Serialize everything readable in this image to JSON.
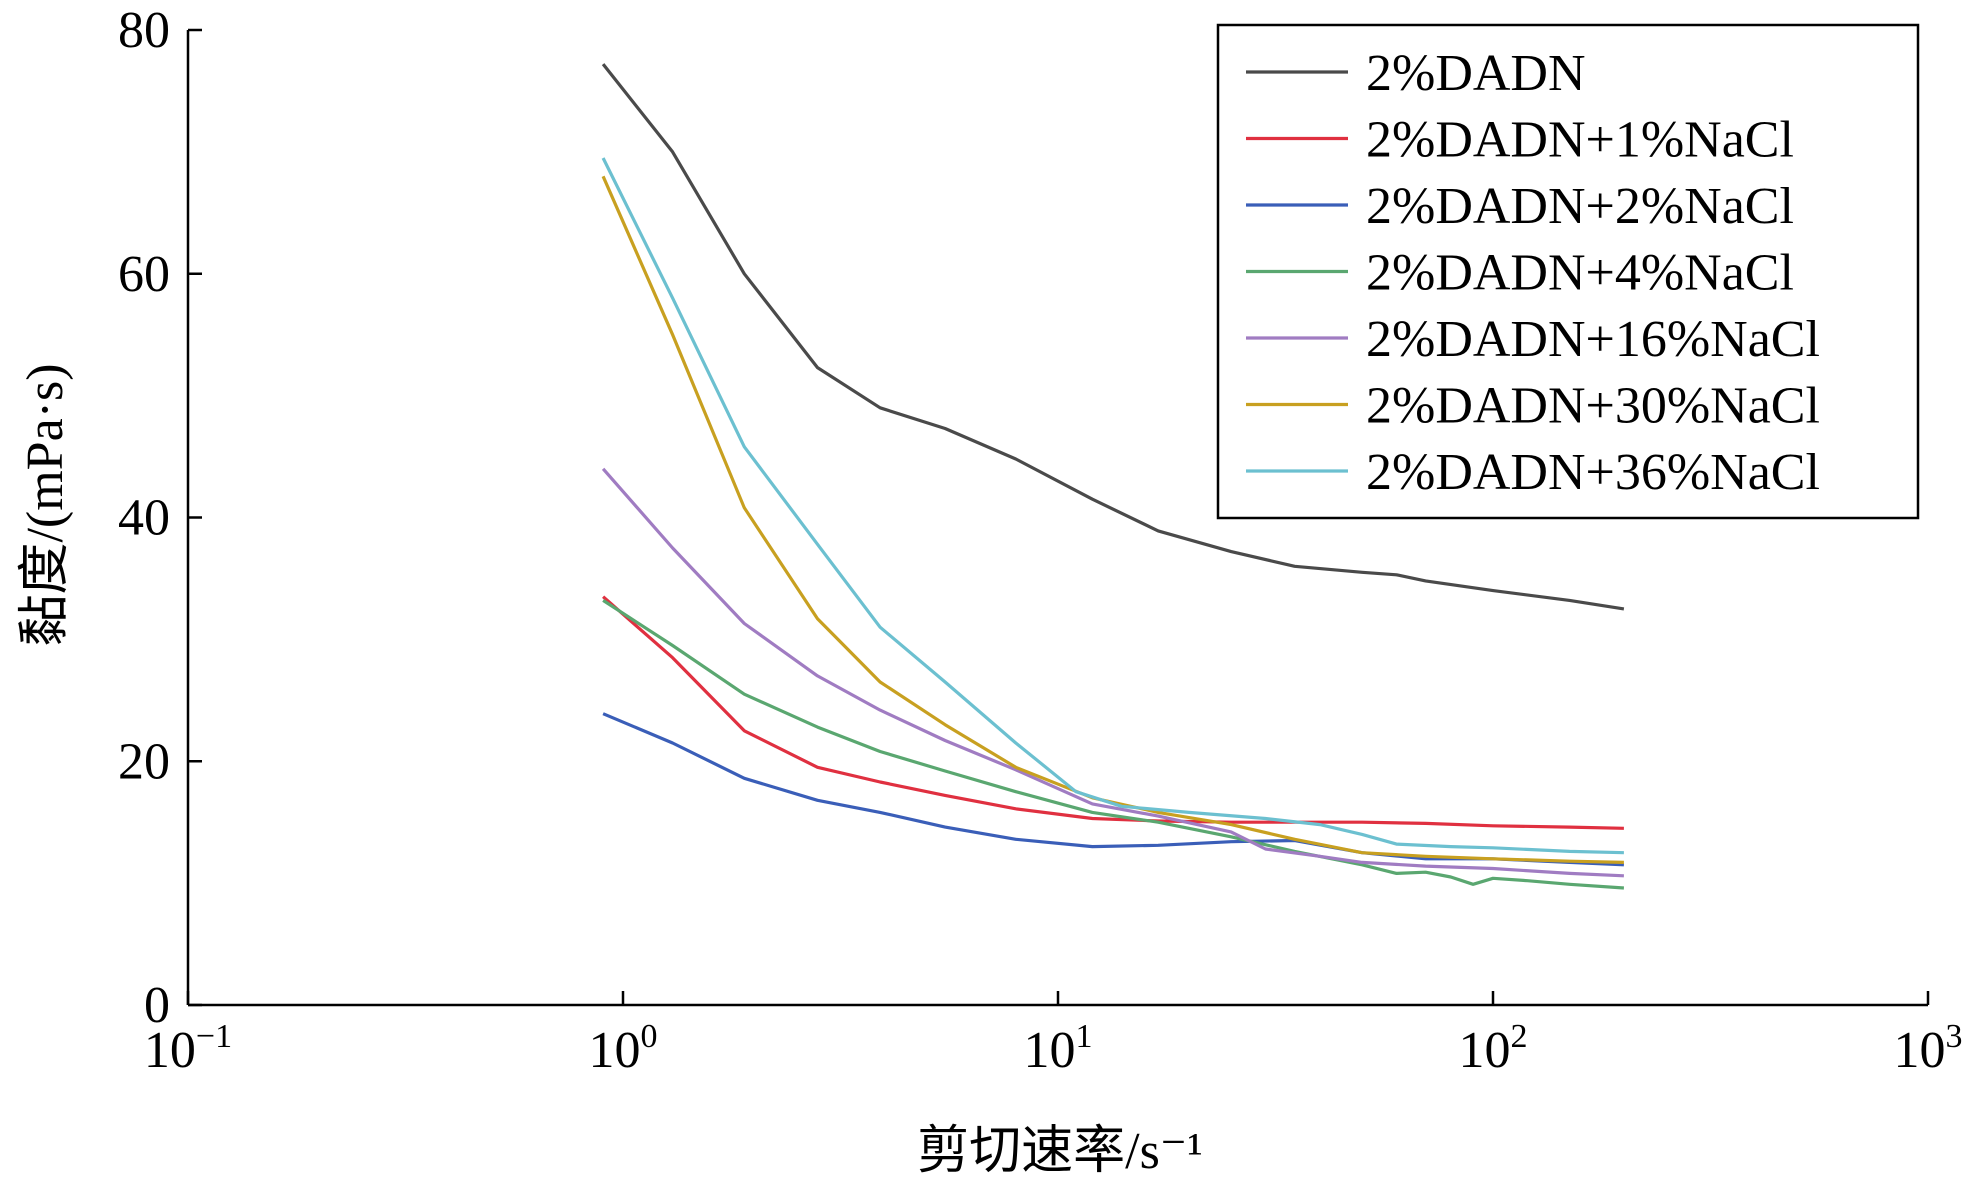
{
  "chart_data": {
    "type": "line",
    "title": "",
    "xlabel": "剪切速率/s⁻¹",
    "ylabel": "黏度/(mPa·s)",
    "xscale": "log",
    "xlim": [
      0.1,
      1000
    ],
    "ylim": [
      0,
      80
    ],
    "x_ticks": [
      {
        "value": 0.1,
        "base": "10",
        "exp": "−1"
      },
      {
        "value": 1,
        "base": "10",
        "exp": "0"
      },
      {
        "value": 10,
        "base": "10",
        "exp": "1"
      },
      {
        "value": 100,
        "base": "10",
        "exp": "2"
      },
      {
        "value": 1000,
        "base": "10",
        "exp": "3"
      }
    ],
    "y_ticks": [
      0,
      20,
      40,
      60,
      80
    ],
    "grid": false,
    "legend_position": "top-right",
    "series": [
      {
        "name": "2%DADN",
        "color": "#4a4a4a",
        "points": [
          [
            0.9,
            77.2
          ],
          [
            1.3,
            70.0
          ],
          [
            1.9,
            60.0
          ],
          [
            2.8,
            52.3
          ],
          [
            3.9,
            49.0
          ],
          [
            5.5,
            47.3
          ],
          [
            8,
            44.8
          ],
          [
            12,
            41.5
          ],
          [
            17,
            38.9
          ],
          [
            25,
            37.2
          ],
          [
            35,
            36.0
          ],
          [
            50,
            35.5
          ],
          [
            60,
            35.3
          ],
          [
            70,
            34.8
          ],
          [
            100,
            34.0
          ],
          [
            150,
            33.2
          ],
          [
            200,
            32.5
          ]
        ]
      },
      {
        "name": "2%DADN+1%NaCl",
        "color": "#e03040",
        "points": [
          [
            0.9,
            33.5
          ],
          [
            1.3,
            28.5
          ],
          [
            1.9,
            22.5
          ],
          [
            2.8,
            19.5
          ],
          [
            3.9,
            18.3
          ],
          [
            5.5,
            17.2
          ],
          [
            8,
            16.1
          ],
          [
            12,
            15.3
          ],
          [
            17,
            15.1
          ],
          [
            25,
            15.0
          ],
          [
            35,
            15.0
          ],
          [
            50,
            15.0
          ],
          [
            70,
            14.9
          ],
          [
            100,
            14.7
          ],
          [
            150,
            14.6
          ],
          [
            200,
            14.5
          ]
        ]
      },
      {
        "name": "2%DADN+2%NaCl",
        "color": "#3a5eb8",
        "points": [
          [
            0.9,
            23.9
          ],
          [
            1.3,
            21.5
          ],
          [
            1.9,
            18.6
          ],
          [
            2.8,
            16.8
          ],
          [
            3.9,
            15.8
          ],
          [
            5.5,
            14.6
          ],
          [
            8,
            13.6
          ],
          [
            12,
            13.0
          ],
          [
            17,
            13.1
          ],
          [
            25,
            13.4
          ],
          [
            35,
            13.5
          ],
          [
            50,
            12.5
          ],
          [
            70,
            12.0
          ],
          [
            100,
            12.0
          ],
          [
            150,
            11.7
          ],
          [
            200,
            11.5
          ]
        ]
      },
      {
        "name": "2%DADN+4%NaCl",
        "color": "#5aa770",
        "points": [
          [
            0.9,
            33.2
          ],
          [
            1.3,
            29.5
          ],
          [
            1.9,
            25.5
          ],
          [
            2.8,
            22.8
          ],
          [
            3.9,
            20.8
          ],
          [
            5.5,
            19.2
          ],
          [
            8,
            17.5
          ],
          [
            12,
            15.8
          ],
          [
            17,
            15.0
          ],
          [
            25,
            13.8
          ],
          [
            35,
            12.6
          ],
          [
            50,
            11.5
          ],
          [
            60,
            10.8
          ],
          [
            70,
            10.9
          ],
          [
            80,
            10.5
          ],
          [
            90,
            9.9
          ],
          [
            100,
            10.4
          ],
          [
            120,
            10.2
          ],
          [
            150,
            9.9
          ],
          [
            200,
            9.6
          ]
        ]
      },
      {
        "name": "2%DADN+16%NaCl",
        "color": "#a07cc2",
        "points": [
          [
            0.9,
            44.0
          ],
          [
            1.3,
            37.5
          ],
          [
            1.9,
            31.3
          ],
          [
            2.8,
            27.0
          ],
          [
            3.9,
            24.2
          ],
          [
            5.5,
            21.7
          ],
          [
            8,
            19.3
          ],
          [
            12,
            16.5
          ],
          [
            17,
            15.5
          ],
          [
            25,
            14.2
          ],
          [
            30,
            12.8
          ],
          [
            40,
            12.2
          ],
          [
            50,
            11.7
          ],
          [
            70,
            11.4
          ],
          [
            100,
            11.2
          ],
          [
            150,
            10.8
          ],
          [
            200,
            10.6
          ]
        ]
      },
      {
        "name": "2%DADN+30%NaCl",
        "color": "#c8a020",
        "points": [
          [
            0.9,
            68.0
          ],
          [
            1.3,
            55.0
          ],
          [
            1.9,
            40.8
          ],
          [
            2.8,
            31.7
          ],
          [
            3.9,
            26.5
          ],
          [
            5.5,
            23.0
          ],
          [
            8,
            19.5
          ],
          [
            12,
            17.0
          ],
          [
            17,
            15.8
          ],
          [
            25,
            14.8
          ],
          [
            35,
            13.6
          ],
          [
            50,
            12.5
          ],
          [
            70,
            12.2
          ],
          [
            100,
            12.0
          ],
          [
            150,
            11.8
          ],
          [
            200,
            11.7
          ]
        ]
      },
      {
        "name": "2%DADN+36%NaCl",
        "color": "#6cc0d0",
        "points": [
          [
            0.9,
            69.5
          ],
          [
            1.3,
            58.0
          ],
          [
            1.9,
            45.8
          ],
          [
            2.8,
            37.8
          ],
          [
            3.9,
            31.0
          ],
          [
            5.5,
            26.5
          ],
          [
            8,
            21.5
          ],
          [
            11,
            17.5
          ],
          [
            14,
            16.3
          ],
          [
            20,
            15.8
          ],
          [
            30,
            15.3
          ],
          [
            40,
            14.8
          ],
          [
            50,
            14.0
          ],
          [
            60,
            13.2
          ],
          [
            80,
            13.0
          ],
          [
            100,
            12.9
          ],
          [
            150,
            12.6
          ],
          [
            200,
            12.5
          ]
        ]
      }
    ]
  }
}
